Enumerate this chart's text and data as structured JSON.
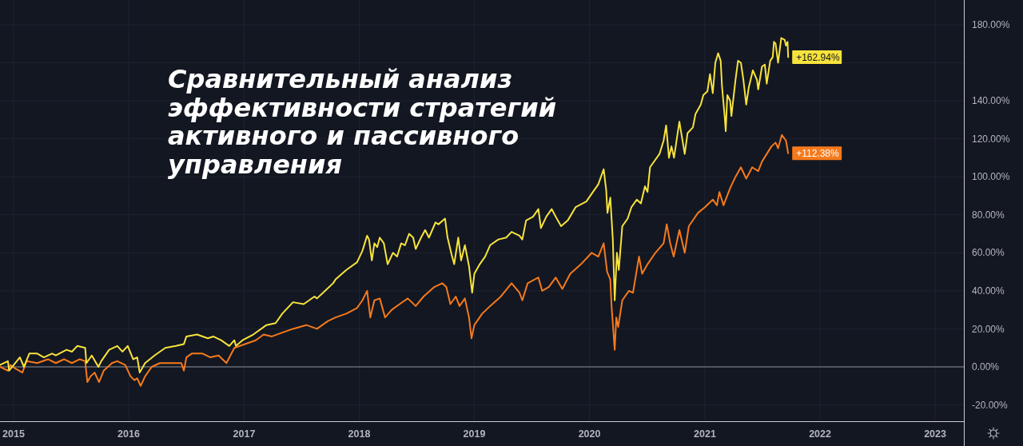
{
  "chart_data": {
    "type": "line",
    "title": "Сравнительный анализ эффективности стратегий активного и пассивного управления",
    "xlim": [
      "2014-11-19",
      "2023-04-02"
    ],
    "ylim": [
      -28.6,
      193.0
    ],
    "xticks": [
      "2015",
      "2016",
      "2017",
      "2018",
      "2019",
      "2020",
      "2021",
      "2022",
      "2023"
    ],
    "yticks": [
      {
        "value": -20,
        "label": "-20.00%"
      },
      {
        "value": 0,
        "label": "0.00%"
      },
      {
        "value": 20,
        "label": "20.00%"
      },
      {
        "value": 40,
        "label": "40.00%"
      },
      {
        "value": 60,
        "label": "60.00%"
      },
      {
        "value": 80,
        "label": "80.00%"
      },
      {
        "value": 100,
        "label": "100.00%"
      },
      {
        "value": 120,
        "label": "120.00%"
      },
      {
        "value": 140,
        "label": "140.00%"
      },
      {
        "value": 160,
        "label": null
      },
      {
        "value": 180,
        "label": "180.00%"
      }
    ],
    "grid": true,
    "ref_lines": [
      {
        "axis": "y",
        "value": 0,
        "color": "#8c8f98"
      }
    ],
    "series": [
      {
        "color": "#f57a1c",
        "x": [
          "2014-11-19",
          "2014-12-14",
          "2014-12-22",
          "2015-01-08",
          "2015-01-29",
          "2015-02-11",
          "2015-03-17",
          "2015-04-20",
          "2015-05-15",
          "2015-06-10",
          "2015-07-05",
          "2015-07-30",
          "2015-08-16",
          "2015-08-23",
          "2015-09-02",
          "2015-09-15",
          "2015-09-29",
          "2015-10-14",
          "2015-11-09",
          "2015-11-26",
          "2015-12-21",
          "2016-01-07",
          "2016-01-19",
          "2016-01-28",
          "2016-02-08",
          "2016-02-22",
          "2016-03-14",
          "2016-04-09",
          "2016-05-13",
          "2016-06-16",
          "2016-06-24",
          "2016-07-02",
          "2016-07-19",
          "2016-08-22",
          "2016-09-16",
          "2016-10-12",
          "2016-11-06",
          "2016-12-01",
          "2017-01-04",
          "2017-02-07",
          "2017-03-04",
          "2017-03-30",
          "2017-05-02",
          "2017-06-05",
          "2017-07-17",
          "2017-08-20",
          "2017-09-23",
          "2017-10-18",
          "2017-11-21",
          "2017-12-25",
          "2018-01-11",
          "2018-01-26",
          "2018-02-05",
          "2018-02-18",
          "2018-03-07",
          "2018-03-24",
          "2018-04-14",
          "2018-05-09",
          "2018-06-04",
          "2018-06-29",
          "2018-07-24",
          "2018-08-27",
          "2018-09-21",
          "2018-10-04",
          "2018-10-17",
          "2018-11-03",
          "2018-11-15",
          "2018-12-02",
          "2018-12-15",
          "2018-12-23",
          "2019-01-01",
          "2019-01-26",
          "2019-02-20",
          "2019-03-26",
          "2019-04-29",
          "2019-05-24",
          "2019-06-02",
          "2019-06-19",
          "2019-07-23",
          "2019-08-04",
          "2019-08-25",
          "2019-09-16",
          "2019-10-07",
          "2019-11-01",
          "2019-12-05",
          "2020-01-08",
          "2020-01-29",
          "2020-02-15",
          "2020-02-26",
          "2020-03-07",
          "2020-03-11",
          "2020-03-21",
          "2020-03-26",
          "2020-04-01",
          "2020-04-14",
          "2020-05-05",
          "2020-05-18",
          "2020-06-06",
          "2020-06-16",
          "2020-07-03",
          "2020-07-28",
          "2020-08-23",
          "2020-09-02",
          "2020-09-13",
          "2020-09-24",
          "2020-10-12",
          "2020-10-29",
          "2020-11-11",
          "2020-12-10",
          "2021-01-01",
          "2021-01-26",
          "2021-02-08",
          "2021-02-16",
          "2021-03-01",
          "2021-03-22",
          "2021-04-08",
          "2021-04-25",
          "2021-05-12",
          "2021-05-31",
          "2021-06-19",
          "2021-07-01",
          "2021-07-16",
          "2021-07-31",
          "2021-08-13",
          "2021-08-21",
          "2021-09-02",
          "2021-09-15",
          "2021-09-22"
        ],
        "values": [
          0,
          -2,
          1,
          -1,
          -3,
          3,
          2,
          4,
          2,
          4,
          2,
          4,
          3,
          -8,
          -5,
          -3,
          -8,
          -2,
          2,
          3,
          1,
          -5,
          -7,
          -6,
          -10,
          -5,
          0,
          2,
          2,
          2,
          -2,
          5,
          7,
          7,
          5,
          6,
          2,
          10,
          12,
          14,
          17,
          16,
          18,
          20,
          22,
          20,
          24,
          26,
          28,
          31,
          35,
          40,
          26,
          35,
          36,
          26,
          30,
          33,
          36,
          32,
          37,
          42,
          44,
          42,
          33,
          37,
          32,
          36,
          26,
          15,
          22,
          28,
          32,
          37,
          44,
          39,
          35,
          44,
          47,
          40,
          42,
          47,
          41,
          49,
          54,
          60,
          58,
          65,
          50,
          46,
          32,
          9,
          26,
          21,
          35,
          40,
          39,
          58,
          49,
          54,
          60,
          65,
          75,
          65,
          58,
          72,
          60,
          74,
          81,
          84,
          88,
          85,
          92,
          85,
          94,
          100,
          105,
          99,
          105,
          103,
          108,
          112,
          116,
          118,
          115,
          122,
          119,
          112.38
        ],
        "value_labels": [
          null,
          null,
          null,
          null,
          null,
          null,
          null,
          null,
          null,
          null,
          null,
          null,
          null,
          null,
          null,
          null,
          null,
          null,
          null,
          null,
          null,
          null,
          null,
          null,
          null,
          null,
          null,
          null,
          null,
          null,
          null,
          null,
          null,
          null,
          null,
          null,
          null,
          null,
          null,
          null,
          null,
          null,
          null,
          null,
          null,
          null,
          null,
          null,
          null,
          null,
          null,
          null,
          null,
          null,
          null,
          null,
          null,
          null,
          null,
          null,
          null,
          null,
          null,
          null,
          null,
          null,
          null,
          null,
          null,
          null,
          null,
          null,
          null,
          null,
          null,
          null,
          null,
          null,
          null,
          null,
          null,
          null,
          null,
          null,
          null,
          null,
          null,
          null,
          null,
          null,
          null,
          null,
          null,
          null,
          null,
          null,
          null,
          null,
          null,
          null,
          null,
          null,
          null,
          null,
          null,
          null,
          null,
          null,
          null,
          null,
          null,
          null,
          null,
          null,
          null,
          null,
          null,
          null,
          null,
          null,
          null,
          null,
          null,
          null,
          null,
          null,
          null,
          "+112.38%"
        ]
      },
      {
        "color": "#f7e33c",
        "x": [
          "2014-11-19",
          "2014-12-14",
          "2014-12-18",
          "2015-01-21",
          "2015-02-03",
          "2015-02-20",
          "2015-03-17",
          "2015-04-07",
          "2015-05-03",
          "2015-05-15",
          "2015-06-18",
          "2015-07-05",
          "2015-07-22",
          "2015-08-16",
          "2015-08-20",
          "2015-09-06",
          "2015-09-27",
          "2015-10-06",
          "2015-10-31",
          "2015-11-26",
          "2015-12-12",
          "2015-12-29",
          "2016-01-15",
          "2016-01-28",
          "2016-02-05",
          "2016-02-22",
          "2016-03-23",
          "2016-04-26",
          "2016-05-30",
          "2016-06-24",
          "2016-07-02",
          "2016-08-05",
          "2016-09-08",
          "2016-09-25",
          "2016-10-20",
          "2016-11-15",
          "2016-12-01",
          "2016-12-06",
          "2016-12-27",
          "2017-01-30",
          "2017-03-13",
          "2017-04-11",
          "2017-05-02",
          "2017-06-05",
          "2017-07-09",
          "2017-08-12",
          "2017-08-20",
          "2017-09-15",
          "2017-10-10",
          "2017-10-18",
          "2017-11-21",
          "2017-12-25",
          "2018-01-11",
          "2018-01-26",
          "2018-02-01",
          "2018-02-10",
          "2018-02-18",
          "2018-02-27",
          "2018-03-07",
          "2018-03-20",
          "2018-04-01",
          "2018-04-18",
          "2018-05-01",
          "2018-05-14",
          "2018-05-26",
          "2018-06-08",
          "2018-06-21",
          "2018-06-29",
          "2018-07-16",
          "2018-07-29",
          "2018-08-10",
          "2018-08-31",
          "2018-09-09",
          "2018-09-30",
          "2018-10-08",
          "2018-10-21",
          "2018-10-29",
          "2018-11-11",
          "2018-11-20",
          "2018-12-02",
          "2018-12-15",
          "2018-12-25",
          "2019-01-01",
          "2019-01-18",
          "2019-02-04",
          "2019-02-20",
          "2019-03-18",
          "2019-04-12",
          "2019-04-29",
          "2019-05-24",
          "2019-06-02",
          "2019-06-14",
          "2019-07-06",
          "2019-07-23",
          "2019-07-31",
          "2019-08-17",
          "2019-09-03",
          "2019-09-16",
          "2019-10-03",
          "2019-10-24",
          "2019-11-18",
          "2019-12-22",
          "2020-01-16",
          "2020-01-29",
          "2020-02-15",
          "2020-02-23",
          "2020-02-27",
          "2020-03-07",
          "2020-03-15",
          "2020-03-21",
          "2020-03-28",
          "2020-04-03",
          "2020-04-14",
          "2020-05-01",
          "2020-05-13",
          "2020-05-30",
          "2020-06-12",
          "2020-06-25",
          "2020-07-03",
          "2020-07-11",
          "2020-07-28",
          "2020-08-10",
          "2020-08-23",
          "2020-08-31",
          "2020-09-09",
          "2020-09-17",
          "2020-09-25",
          "2020-10-12",
          "2020-10-29",
          "2020-11-07",
          "2020-11-24",
          "2020-12-02",
          "2020-12-19",
          "2020-12-27",
          "2021-01-09",
          "2021-01-17",
          "2021-01-26",
          "2021-02-03",
          "2021-02-12",
          "2021-02-20",
          "2021-02-24",
          "2021-03-05",
          "2021-03-08",
          "2021-03-13",
          "2021-03-22",
          "2021-03-26",
          "2021-04-08",
          "2021-04-16",
          "2021-04-25",
          "2021-05-03",
          "2021-05-12",
          "2021-05-20",
          "2021-06-02",
          "2021-06-15",
          "2021-06-19",
          "2021-07-01",
          "2021-07-10",
          "2021-07-16",
          "2021-07-27",
          "2021-08-04",
          "2021-08-08",
          "2021-08-13",
          "2021-08-21",
          "2021-08-31",
          "2021-09-11",
          "2021-09-15",
          "2021-09-20",
          "2021-09-22"
        ],
        "values": [
          1,
          3,
          -2,
          5,
          0,
          7,
          7,
          5,
          7,
          6,
          9,
          8,
          11,
          10,
          2,
          6,
          0,
          3,
          9,
          11,
          8,
          11,
          4,
          5,
          -3,
          2,
          6,
          10,
          11,
          12,
          16,
          17,
          15,
          16,
          14,
          11,
          14,
          11,
          14,
          17,
          22,
          23,
          28,
          34,
          33,
          37,
          36,
          40,
          44,
          46,
          51,
          55,
          61,
          69,
          67,
          56,
          65,
          63,
          68,
          65,
          54,
          60,
          58,
          65,
          64,
          70,
          68,
          62,
          68,
          72,
          68,
          76,
          75,
          78,
          68,
          59,
          54,
          68,
          56,
          64,
          53,
          39,
          49,
          54,
          58,
          64,
          67,
          68,
          71,
          69,
          67,
          77,
          79,
          83,
          73,
          79,
          83,
          79,
          74,
          77,
          84,
          87,
          93,
          96,
          104,
          93,
          81,
          89,
          67,
          35,
          60,
          51,
          74,
          78,
          84,
          88,
          86,
          95,
          92,
          105,
          109,
          112,
          119,
          127,
          110,
          116,
          110,
          129,
          112,
          123,
          126,
          133,
          138,
          143,
          145,
          154,
          144,
          160,
          165,
          161,
          148,
          131,
          124,
          143,
          140,
          132,
          151,
          161,
          160,
          151,
          138,
          147,
          156,
          151,
          146,
          158,
          159,
          149,
          161,
          163,
          171,
          170,
          160,
          173,
          172,
          169,
          171,
          162.94
        ],
        "value_labels": [
          null,
          null,
          null,
          null,
          null,
          null,
          null,
          null,
          null,
          null,
          null,
          null,
          null,
          null,
          null,
          null,
          null,
          null,
          null,
          null,
          null,
          null,
          null,
          null,
          null,
          null,
          null,
          null,
          null,
          null,
          null,
          null,
          null,
          null,
          null,
          null,
          null,
          null,
          null,
          null,
          null,
          null,
          null,
          null,
          null,
          null,
          null,
          null,
          null,
          null,
          null,
          null,
          null,
          null,
          null,
          null,
          null,
          null,
          null,
          null,
          null,
          null,
          null,
          null,
          null,
          null,
          null,
          null,
          null,
          null,
          null,
          null,
          null,
          null,
          null,
          null,
          null,
          null,
          null,
          null,
          null,
          null,
          null,
          null,
          null,
          null,
          null,
          null,
          null,
          null,
          null,
          null,
          null,
          null,
          null,
          null,
          null,
          null,
          null,
          null,
          null,
          null,
          null,
          null,
          null,
          null,
          null,
          null,
          null,
          null,
          null,
          null,
          null,
          null,
          null,
          null,
          null,
          null,
          null,
          null,
          null,
          null,
          null,
          null,
          null,
          null,
          null,
          null,
          null,
          null,
          null,
          null,
          null,
          null,
          null,
          null,
          null,
          null,
          null,
          null,
          null,
          null,
          null,
          null,
          null,
          null,
          null,
          null,
          null,
          null,
          null,
          null,
          null,
          null,
          null,
          null,
          null,
          null,
          null,
          null,
          null,
          null,
          null,
          null,
          null,
          null,
          null,
          "+162.94%"
        ]
      }
    ]
  }
}
